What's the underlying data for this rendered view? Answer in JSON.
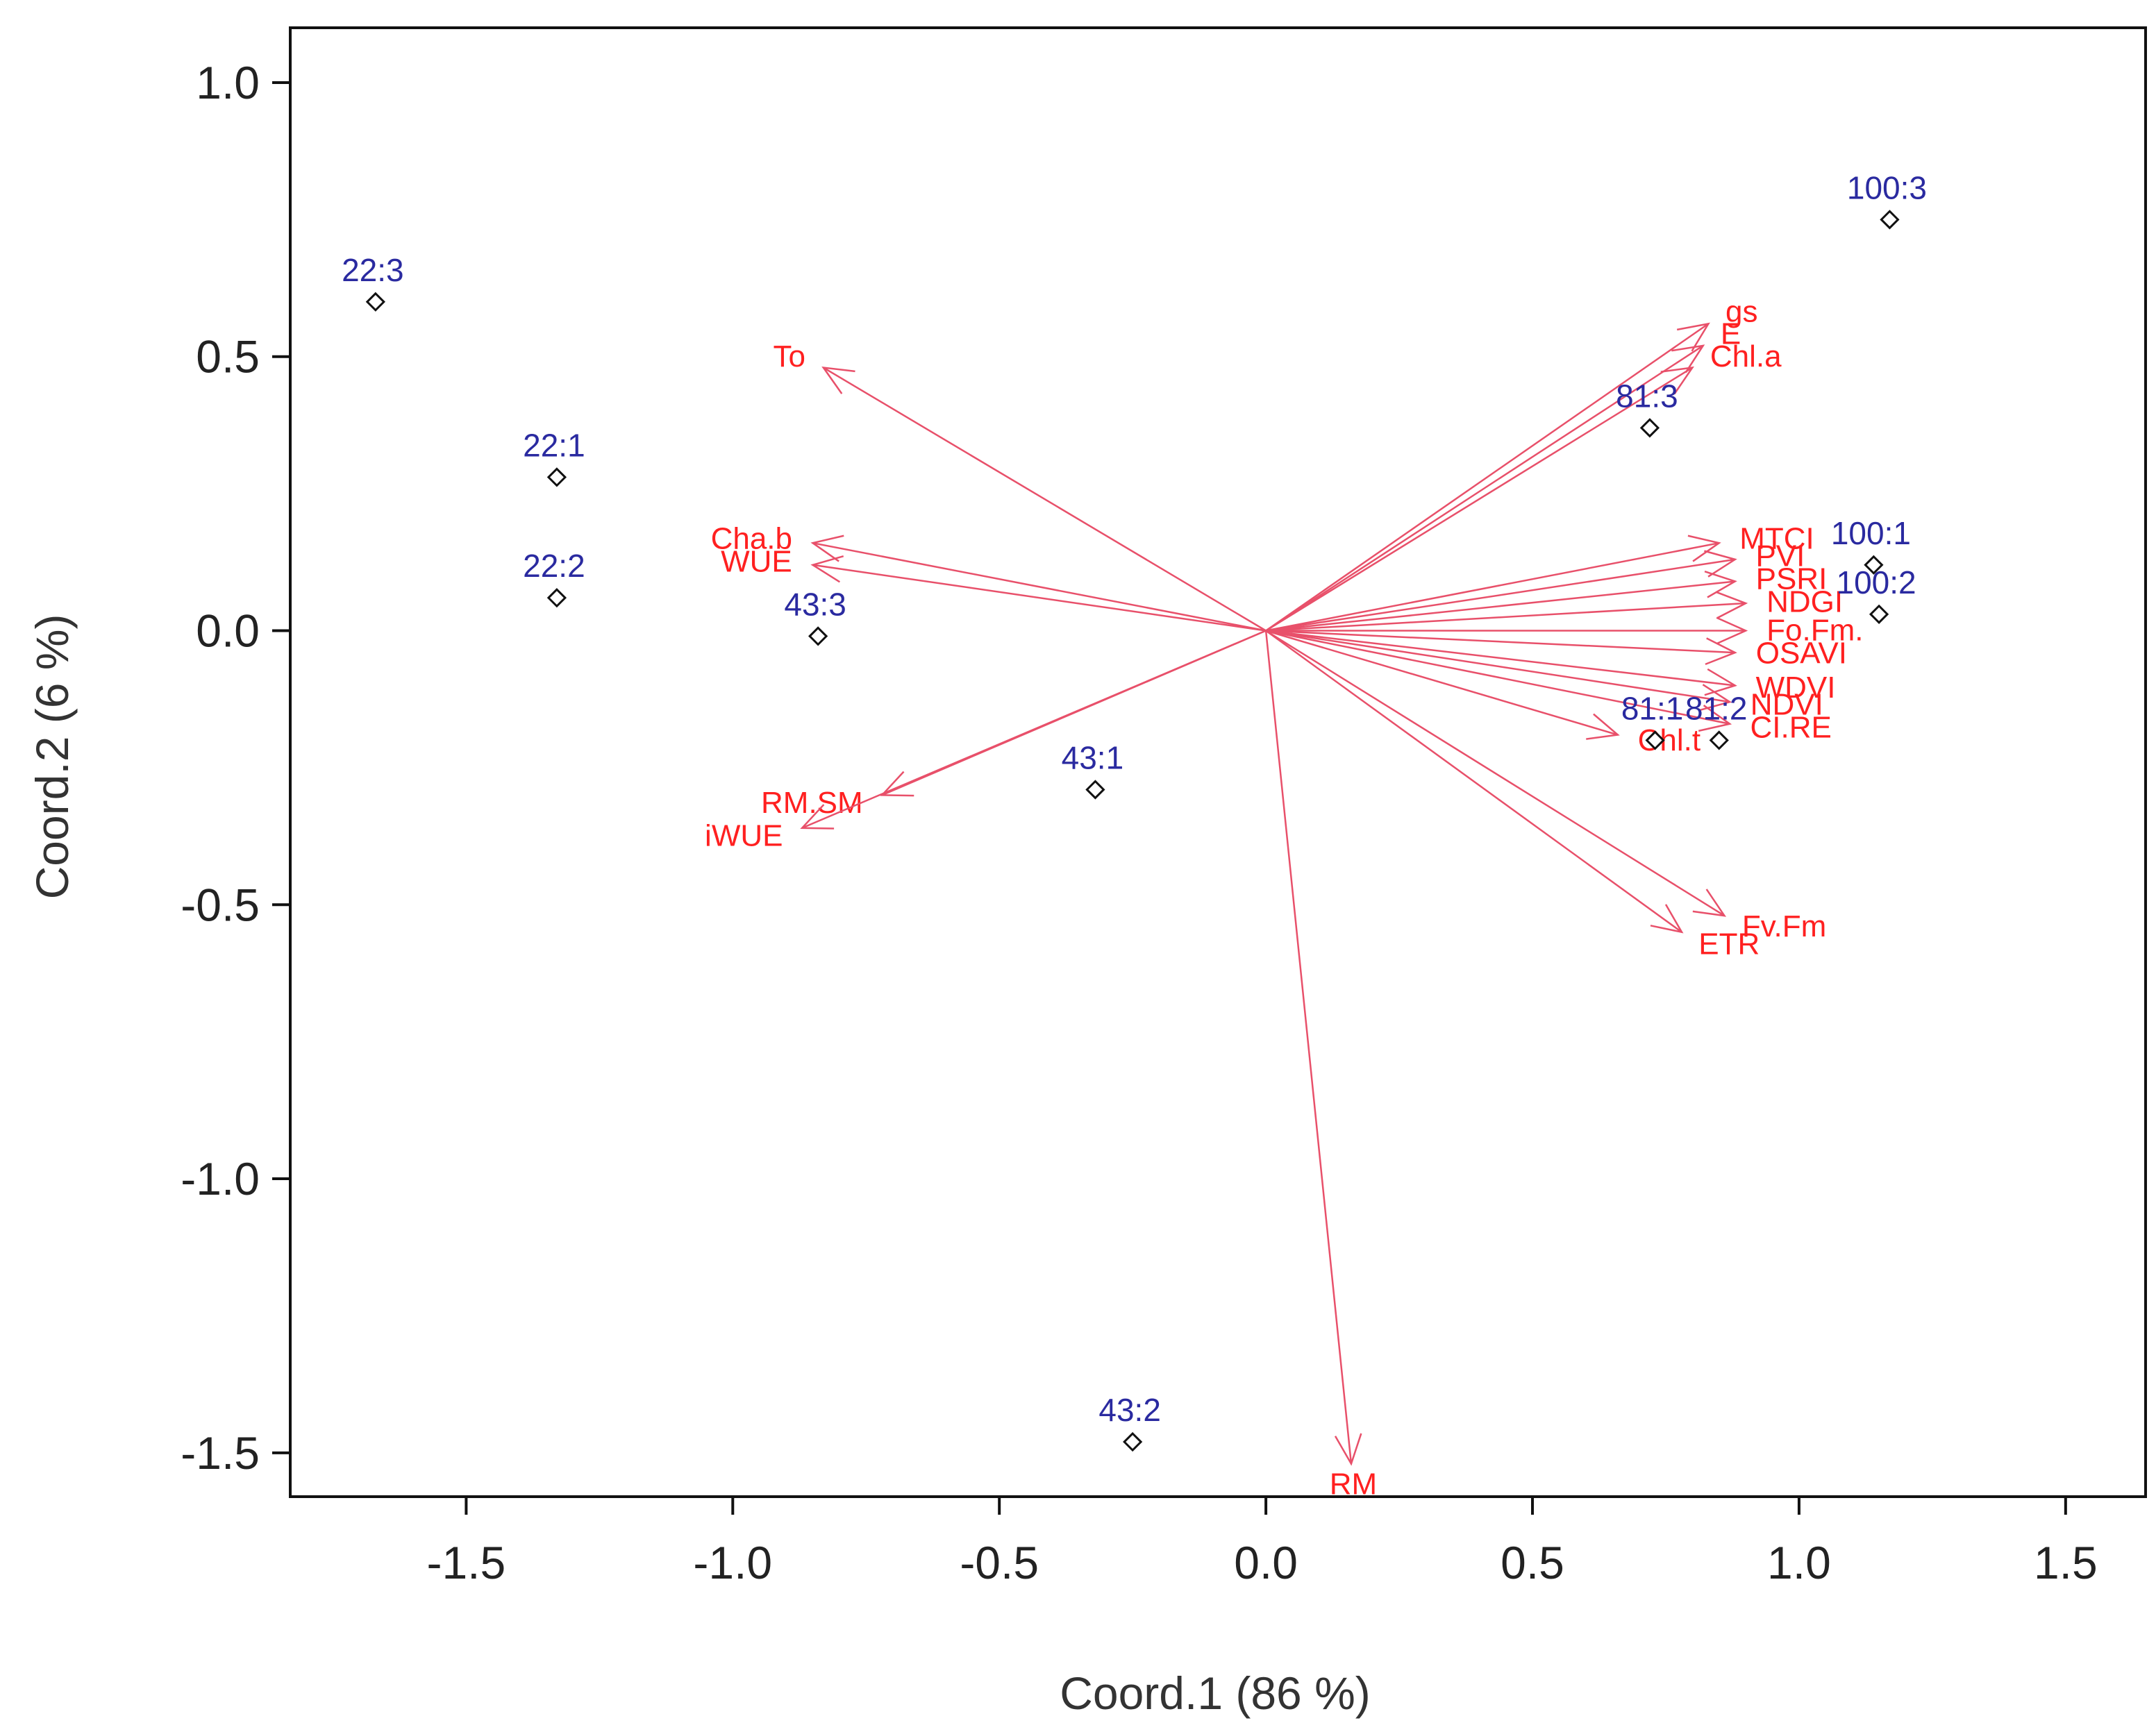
{
  "chart_data": {
    "type": "scatter",
    "title": "",
    "xlabel": "Coord.1 (86 %)",
    "ylabel": "Coord.2 (6 %)",
    "xlim": [
      -1.83,
      1.65
    ],
    "ylim": [
      -1.58,
      1.1
    ],
    "xticks": [
      -1.5,
      -1.0,
      -0.5,
      0.0,
      0.5,
      1.0,
      1.5
    ],
    "xtick_labels": [
      "-1.5",
      "-1.0",
      "-0.5",
      "0.0",
      "0.5",
      "1.0",
      "1.5"
    ],
    "yticks": [
      1.0,
      0.5,
      0.0,
      -0.5,
      -1.0,
      -1.5
    ],
    "ytick_labels": [
      "1.0",
      "0.5",
      "0.0",
      "-0.5",
      "-1.0",
      "-1.5"
    ],
    "colors": {
      "points": "#2a2aa0",
      "vectors": "#e8506a",
      "vector_labels": "#ff2020"
    },
    "points": [
      {
        "label": "22:3",
        "x": -1.67,
        "y": 0.6
      },
      {
        "label": "22:1",
        "x": -1.33,
        "y": 0.28
      },
      {
        "label": "22:2",
        "x": -1.33,
        "y": 0.06
      },
      {
        "label": "43:3",
        "x": -0.84,
        "y": -0.01
      },
      {
        "label": "43:1",
        "x": -0.32,
        "y": -0.29
      },
      {
        "label": "43:2",
        "x": -0.25,
        "y": -1.48
      },
      {
        "label": "81:3",
        "x": 0.72,
        "y": 0.37
      },
      {
        "label": "81:1",
        "x": 0.73,
        "y": -0.2
      },
      {
        "label": "81:2",
        "x": 0.85,
        "y": -0.2
      },
      {
        "label": "100:1",
        "x": 1.14,
        "y": 0.12
      },
      {
        "label": "100:2",
        "x": 1.15,
        "y": 0.03
      },
      {
        "label": "100:3",
        "x": 1.17,
        "y": 0.75
      }
    ],
    "vectors": [
      {
        "label": "To",
        "x": -0.83,
        "y": 0.48
      },
      {
        "label": "Cha.b",
        "x": -0.85,
        "y": 0.16
      },
      {
        "label": "WUE",
        "x": -0.85,
        "y": 0.12
      },
      {
        "label": "RM.SM",
        "x": -0.72,
        "y": -0.3
      },
      {
        "label": "iWUE",
        "x": -0.87,
        "y": -0.36
      },
      {
        "label": "gs",
        "x": 0.83,
        "y": 0.56
      },
      {
        "label": "E",
        "x": 0.82,
        "y": 0.52
      },
      {
        "label": "Chl.a",
        "x": 0.8,
        "y": 0.48
      },
      {
        "label": "MTCI",
        "x": 0.85,
        "y": 0.16
      },
      {
        "label": "PVI",
        "x": 0.88,
        "y": 0.13
      },
      {
        "label": "PSRI",
        "x": 0.88,
        "y": 0.09
      },
      {
        "label": "NDGI",
        "x": 0.9,
        "y": 0.05
      },
      {
        "label": "Fo.Fm.",
        "x": 0.9,
        "y": 0.0
      },
      {
        "label": "OSAVI",
        "x": 0.88,
        "y": -0.04
      },
      {
        "label": "WDVI",
        "x": 0.88,
        "y": -0.1
      },
      {
        "label": "NDVI",
        "x": 0.87,
        "y": -0.13
      },
      {
        "label": "CI.RE",
        "x": 0.87,
        "y": -0.17
      },
      {
        "label": "Chl.t",
        "x": 0.66,
        "y": -0.19
      },
      {
        "label": "Fv.Fm",
        "x": 0.86,
        "y": -0.52
      },
      {
        "label": "ETR",
        "x": 0.78,
        "y": -0.55
      },
      {
        "label": "RM",
        "x": 0.16,
        "y": -1.52
      }
    ]
  }
}
